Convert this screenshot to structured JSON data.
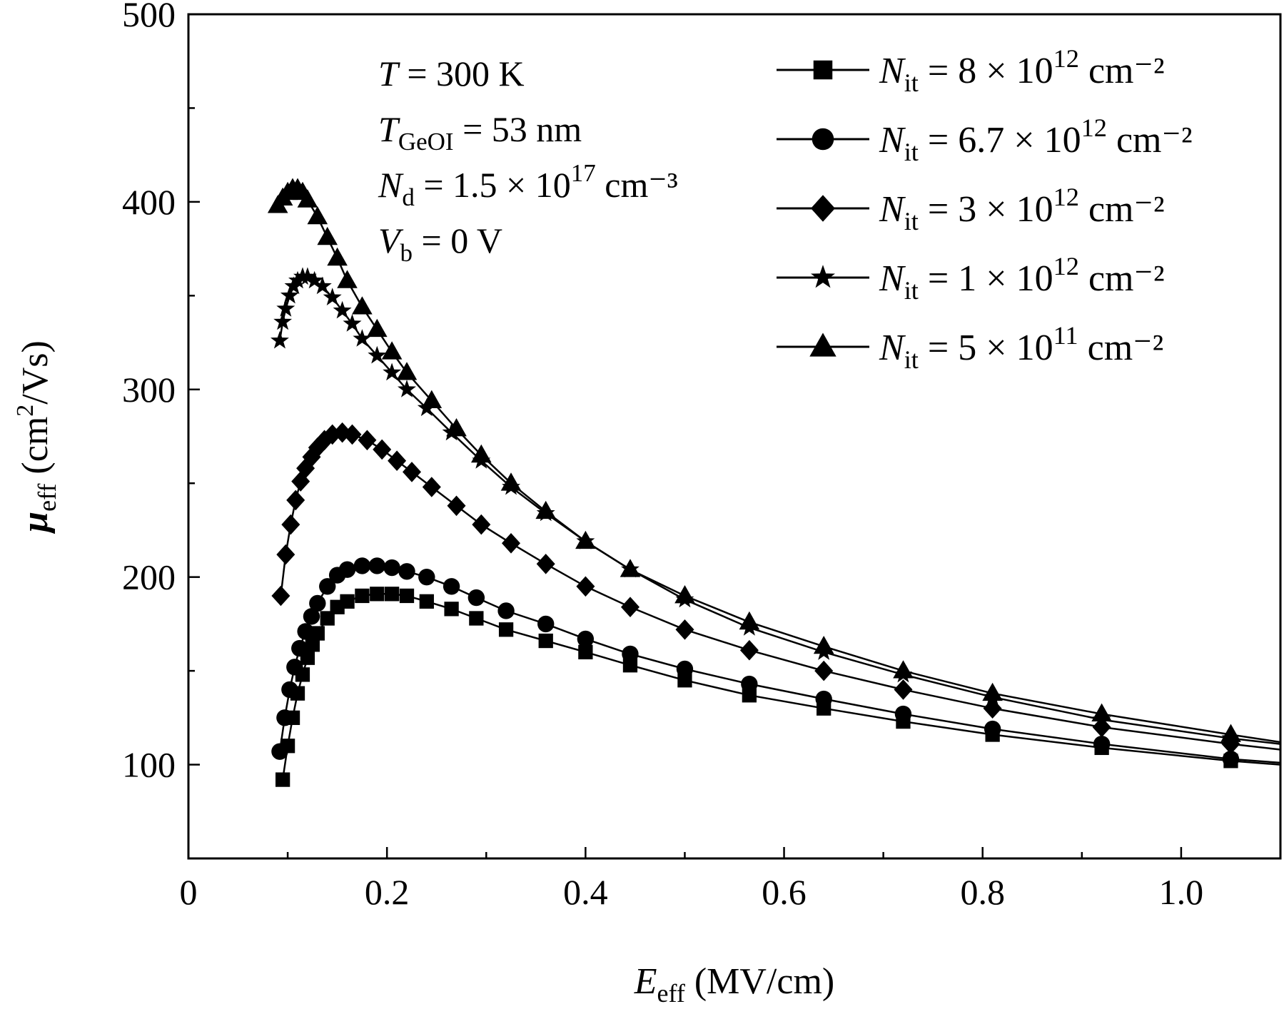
{
  "chart_data": {
    "type": "line",
    "xlabel": {
      "main": "E",
      "sub": "eff",
      "unit": " (MV/cm)"
    },
    "ylabel": {
      "main": "μ",
      "sub": "eff",
      "unit_pre": " (cm",
      "unit_sup": "2",
      "unit_post": "/Vs)"
    },
    "xlim": [
      0,
      1.1
    ],
    "ylim": [
      50,
      500
    ],
    "xticks": [
      0,
      0.2,
      0.4,
      0.6,
      0.8,
      1.0
    ],
    "xtick_labels": [
      "0",
      "0.2",
      "0.4",
      "0.6",
      "0.8",
      "1.0"
    ],
    "yticks": [
      100,
      200,
      300,
      400,
      500
    ],
    "ytick_labels": [
      "100",
      "200",
      "300",
      "400",
      "500"
    ],
    "grid": false,
    "legend_position": "top-right",
    "annotations": [
      {
        "main": "T",
        "sub": "",
        "rest": " = 300 K",
        "sup": "",
        "tail": ""
      },
      {
        "main": "T",
        "sub": "GeOI",
        "rest": " = 53 nm",
        "sup": "",
        "tail": ""
      },
      {
        "main": "N",
        "sub": "d",
        "rest": " = 1.5 × 10",
        "sup": "17",
        "tail": " cm⁻³"
      },
      {
        "main": "V",
        "sub": "b",
        "rest": " = 0 V",
        "sup": "",
        "tail": ""
      }
    ],
    "series": [
      {
        "name": "N_it = 8 × 10^12 cm^-2",
        "label": {
          "main": "N",
          "sub": "it",
          "rest": " = 8 × 10",
          "sup": "12",
          "tail": " cm⁻²"
        },
        "marker": "square",
        "x": [
          0.095,
          0.1,
          0.105,
          0.11,
          0.115,
          0.12,
          0.125,
          0.13,
          0.14,
          0.15,
          0.16,
          0.175,
          0.19,
          0.205,
          0.22,
          0.24,
          0.265,
          0.29,
          0.32,
          0.36,
          0.4,
          0.445,
          0.5,
          0.565,
          0.64,
          0.72,
          0.81,
          0.92,
          1.05,
          1.1
        ],
        "y": [
          92,
          110,
          125,
          138,
          148,
          157,
          164,
          170,
          178,
          184,
          187,
          190,
          191,
          191,
          190,
          187,
          183,
          178,
          172,
          166,
          160,
          153,
          145,
          137,
          130,
          123,
          116,
          109,
          102,
          100
        ]
      },
      {
        "name": "N_it = 6.7 × 10^12 cm^-2",
        "label": {
          "main": "N",
          "sub": "it",
          "rest": " = 6.7 × 10",
          "sup": "12",
          "tail": " cm⁻²"
        },
        "marker": "circle",
        "x": [
          0.092,
          0.097,
          0.102,
          0.107,
          0.112,
          0.118,
          0.124,
          0.13,
          0.14,
          0.15,
          0.16,
          0.175,
          0.19,
          0.205,
          0.22,
          0.24,
          0.265,
          0.29,
          0.32,
          0.36,
          0.4,
          0.445,
          0.5,
          0.565,
          0.64,
          0.72,
          0.81,
          0.92,
          1.05,
          1.1
        ],
        "y": [
          107,
          125,
          140,
          152,
          162,
          171,
          179,
          186,
          195,
          201,
          204,
          206,
          206,
          205,
          203,
          200,
          195,
          189,
          182,
          175,
          167,
          159,
          151,
          143,
          135,
          127,
          119,
          111,
          103,
          101
        ]
      },
      {
        "name": "N_it = 3 × 10^12 cm^-2",
        "label": {
          "main": "N",
          "sub": "it",
          "rest": " = 3 × 10",
          "sup": "12",
          "tail": " cm⁻²"
        },
        "marker": "diamond",
        "x": [
          0.093,
          0.098,
          0.103,
          0.108,
          0.113,
          0.118,
          0.124,
          0.13,
          0.137,
          0.145,
          0.155,
          0.165,
          0.18,
          0.195,
          0.21,
          0.225,
          0.245,
          0.27,
          0.295,
          0.325,
          0.36,
          0.4,
          0.445,
          0.5,
          0.565,
          0.64,
          0.72,
          0.81,
          0.92,
          1.05,
          1.1
        ],
        "y": [
          190,
          212,
          228,
          241,
          251,
          258,
          264,
          269,
          273,
          276,
          277,
          276,
          273,
          268,
          262,
          256,
          248,
          238,
          228,
          218,
          207,
          195,
          184,
          172,
          161,
          150,
          140,
          130,
          120,
          111,
          108
        ]
      },
      {
        "name": "N_it = 1 × 10^12 cm^-2",
        "label": {
          "main": "N",
          "sub": "it",
          "rest": " = 1 × 10",
          "sup": "12",
          "tail": " cm⁻²"
        },
        "marker": "star",
        "x": [
          0.092,
          0.095,
          0.098,
          0.102,
          0.106,
          0.11,
          0.115,
          0.12,
          0.127,
          0.135,
          0.145,
          0.155,
          0.165,
          0.175,
          0.19,
          0.205,
          0.22,
          0.24,
          0.265,
          0.295,
          0.325,
          0.36,
          0.4,
          0.445,
          0.5,
          0.565,
          0.64,
          0.72,
          0.81,
          0.92,
          1.05,
          1.1
        ],
        "y": [
          326,
          336,
          343,
          350,
          355,
          358,
          360,
          360,
          358,
          355,
          349,
          342,
          335,
          327,
          318,
          309,
          300,
          290,
          277,
          262,
          248,
          234,
          219,
          204,
          188,
          173,
          160,
          148,
          136,
          124,
          114,
          111
        ]
      },
      {
        "name": "N_it = 5 × 10^11 cm^-2",
        "label": {
          "main": "N",
          "sub": "it",
          "rest": " = 5 × 10",
          "sup": "11",
          "tail": " cm⁻²"
        },
        "marker": "triangle",
        "x": [
          0.09,
          0.095,
          0.1,
          0.105,
          0.11,
          0.115,
          0.12,
          0.13,
          0.14,
          0.15,
          0.16,
          0.175,
          0.19,
          0.205,
          0.22,
          0.245,
          0.27,
          0.295,
          0.325,
          0.36,
          0.4,
          0.445,
          0.5,
          0.565,
          0.64,
          0.72,
          0.81,
          0.92,
          1.05,
          1.1
        ],
        "y": [
          398,
          402,
          405,
          407,
          407,
          405,
          401,
          392,
          381,
          370,
          358,
          344,
          332,
          320,
          309,
          294,
          279,
          265,
          250,
          235,
          219,
          204,
          190,
          176,
          163,
          150,
          138,
          127,
          116,
          112
        ]
      }
    ]
  }
}
